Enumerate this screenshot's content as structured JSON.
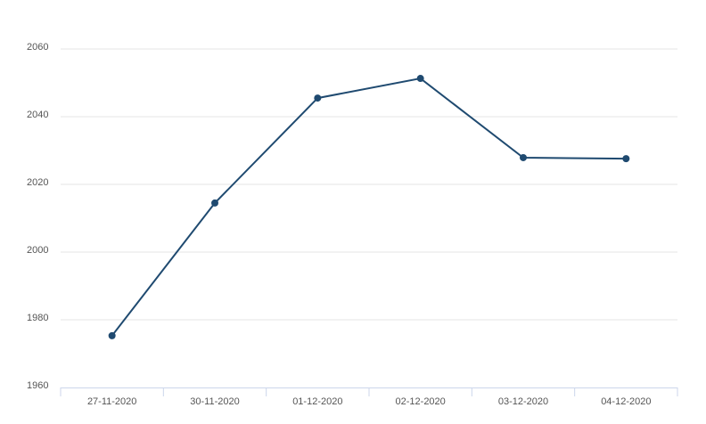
{
  "chart_data": {
    "type": "line",
    "categories": [
      "27-11-2020",
      "30-11-2020",
      "01-12-2020",
      "02-12-2020",
      "03-12-2020",
      "04-12-2020"
    ],
    "values": [
      1975.3,
      2014.5,
      2045.5,
      2051.3,
      2027.9,
      2027.6
    ],
    "color": "#1f4a70",
    "ylim": [
      1960,
      2060
    ],
    "yticks": [
      1960,
      1980,
      2000,
      2020,
      2040,
      2060
    ],
    "grid": true
  }
}
